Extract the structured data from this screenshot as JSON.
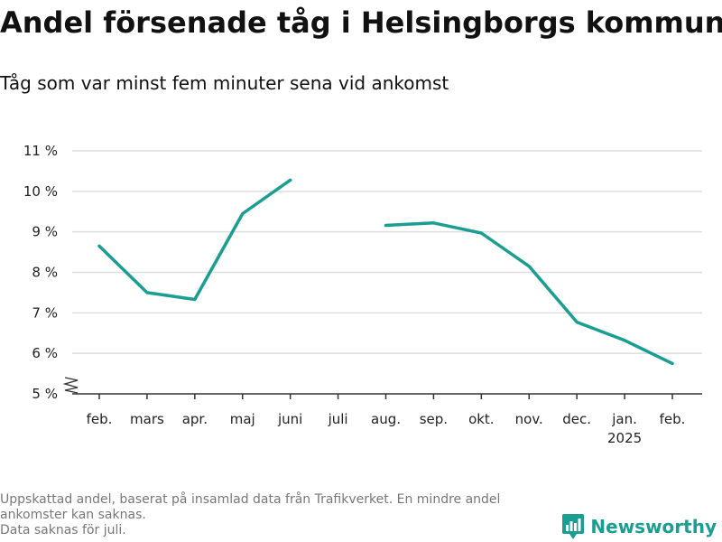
{
  "header": {
    "title": "Andel försenade tåg i Helsingborgs kommun",
    "subtitle": "Tåg som var minst fem minuter sena vid ankomst"
  },
  "footnote": {
    "line1": "Uppskattad andel, baserat på insamlad data från Trafikverket. En mindre andel",
    "line2": "ankomster kan saknas.",
    "line3": "Data saknas för juli."
  },
  "logo": {
    "text": "Newsworthy",
    "icon": "bar-chart-pin-icon"
  },
  "colors": {
    "line": "#1a9e92",
    "grid": "#dddddd",
    "axis": "#333333"
  },
  "chart_data": {
    "type": "line",
    "categories": [
      "feb.",
      "mars",
      "apr.",
      "maj",
      "juni",
      "juli",
      "aug.",
      "sep.",
      "okt.",
      "nov.",
      "dec.",
      "jan.",
      "feb."
    ],
    "year_label": "2025",
    "year_label_under": "jan.",
    "series": [
      {
        "values": [
          8.65,
          7.5,
          7.33,
          9.45,
          10.28,
          null,
          9.16,
          9.22,
          8.97,
          8.15,
          6.77,
          6.32,
          5.75
        ]
      }
    ],
    "y_ticks": [
      5,
      6,
      7,
      8,
      9,
      10,
      11
    ],
    "y_tick_labels": [
      "5 %",
      "6 %",
      "7 %",
      "8 %",
      "9 %",
      "10 %",
      "11 %"
    ],
    "ylim": [
      5,
      11
    ],
    "axis_break": true,
    "grid": true
  }
}
